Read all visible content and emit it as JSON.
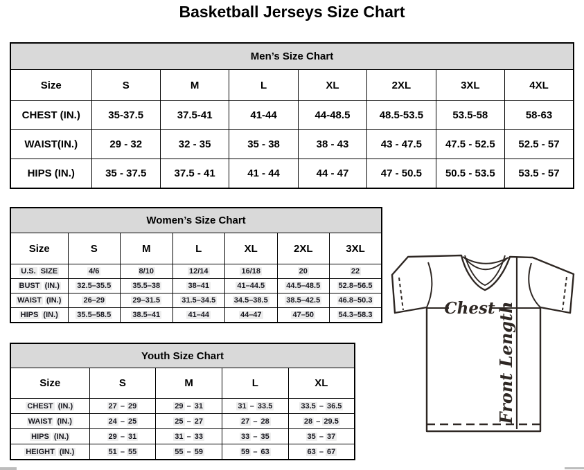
{
  "page_title": "Basketball Jerseys Size Chart",
  "colors": {
    "table_band_bg": "#d9d9d9",
    "border": "#000000",
    "row_highlight": "#ededed",
    "diagram_stroke": "#2e2723"
  },
  "tables": {
    "men": {
      "title": "Men’s Size Chart",
      "columns": [
        "Size",
        "S",
        "M",
        "L",
        "XL",
        "2XL",
        "3XL",
        "4XL"
      ],
      "rows": [
        {
          "label": "CHEST (IN.)",
          "values": [
            "35-37.5",
            "37.5-41",
            "41-44",
            "44-48.5",
            "48.5-53.5",
            "53.5-58",
            "58-63"
          ]
        },
        {
          "label": "WAIST(IN.)",
          "values": [
            "29 - 32",
            "32 - 35",
            "35 - 38",
            "38 - 43",
            "43 - 47.5",
            "47.5 - 52.5",
            "52.5 - 57"
          ]
        },
        {
          "label": "HIPS (IN.)",
          "values": [
            "35 - 37.5",
            "37.5 - 41",
            "41 - 44",
            "44 - 47",
            "47 - 50.5",
            "50.5 - 53.5",
            "53.5 - 57"
          ]
        }
      ]
    },
    "women": {
      "title": "Women’s Size Chart",
      "columns": [
        "Size",
        "S",
        "M",
        "L",
        "XL",
        "2XL",
        "3XL"
      ],
      "rows": [
        {
          "label": "U.S. SIZE",
          "values": [
            "4/6",
            "8/10",
            "12/14",
            "16/18",
            "20",
            "22"
          ]
        },
        {
          "label": "BUST (IN.)",
          "values": [
            "32.5–35.5",
            "35.5–38",
            "38–41",
            "41–44.5",
            "44.5–48.5",
            "52.8–56.5"
          ]
        },
        {
          "label": "WAIST (IN.)",
          "values": [
            "26–29",
            "29–31.5",
            "31.5–34.5",
            "34.5–38.5",
            "38.5–42.5",
            "46.8–50.3"
          ]
        },
        {
          "label": "HIPS (IN.)",
          "values": [
            "35.5–58.5",
            "38.5–41",
            "41–44",
            "44–47",
            "47–50",
            "54.3–58.3"
          ]
        }
      ]
    },
    "youth": {
      "title": "Youth Size Chart",
      "columns": [
        "Size",
        "S",
        "M",
        "L",
        "XL"
      ],
      "rows": [
        {
          "label": "CHEST (IN.)",
          "values": [
            "27 – 29",
            "29 – 31",
            "31 – 33.5",
            "33.5 – 36.5"
          ]
        },
        {
          "label": "WAIST (IN.)",
          "values": [
            "24 – 25",
            "25 – 27",
            "27 – 28",
            "28 – 29.5"
          ]
        },
        {
          "label": "HIPS (IN.)",
          "values": [
            "29 – 31",
            "31 – 33",
            "33 – 35",
            "35 – 37"
          ]
        },
        {
          "label": "HEIGHT (IN.)",
          "values": [
            "51 – 55",
            "55 – 59",
            "59 – 63",
            "63 – 67"
          ]
        }
      ]
    }
  },
  "diagram": {
    "chest_label": "Chest",
    "front_length_label": "Front Length"
  }
}
